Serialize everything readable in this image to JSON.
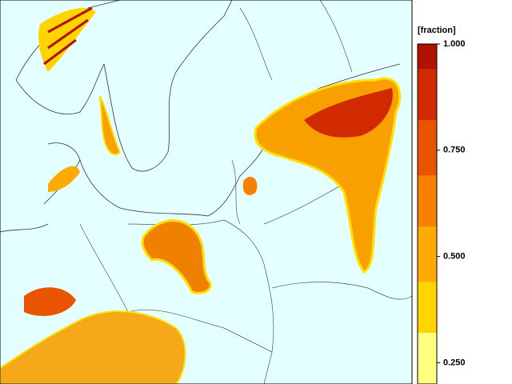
{
  "legend": {
    "title": "[fraction]",
    "range": [
      0.2,
      1
    ],
    "ticks": [
      {
        "value": 1,
        "label": "1.000"
      },
      {
        "value": 0.75,
        "label": "0.750"
      },
      {
        "value": 0.5,
        "label": "0.500"
      },
      {
        "value": 0.25,
        "label": "0.250"
      }
    ],
    "bands": [
      {
        "from": 0.94,
        "to": 1,
        "color": "#b01400"
      },
      {
        "from": 0.82,
        "to": 0.94,
        "color": "#d22a00"
      },
      {
        "from": 0.69,
        "to": 0.82,
        "color": "#e85400"
      },
      {
        "from": 0.57,
        "to": 0.69,
        "color": "#f88000"
      },
      {
        "from": 0.44,
        "to": 0.57,
        "color": "#ffaa00"
      },
      {
        "from": 0.32,
        "to": 0.44,
        "color": "#ffd400"
      },
      {
        "from": 0.19,
        "to": 0.32,
        "color": "#ffff80"
      }
    ]
  }
}
